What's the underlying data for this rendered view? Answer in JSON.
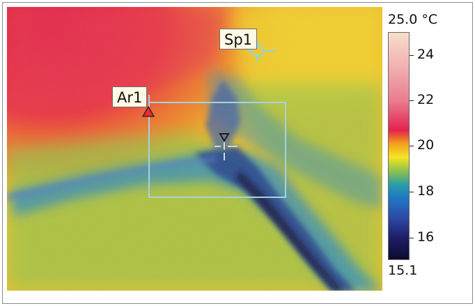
{
  "markers": {
    "spot_label": "Sp1",
    "area_label": "Ar1"
  },
  "temperature_scale": {
    "max_label": "25.0 °C",
    "min_label": "15.1",
    "ticks": [
      "24",
      "22",
      "20",
      "18",
      "16"
    ]
  },
  "colors": {
    "hot": "#e4224c",
    "warm": "#f5e424",
    "cool": "#1f77c4",
    "cold": "#0b0b2d",
    "marker_line": "#8fd3df",
    "area_box": "#a4d3e0",
    "area_triangle": "#ea2a2a"
  }
}
